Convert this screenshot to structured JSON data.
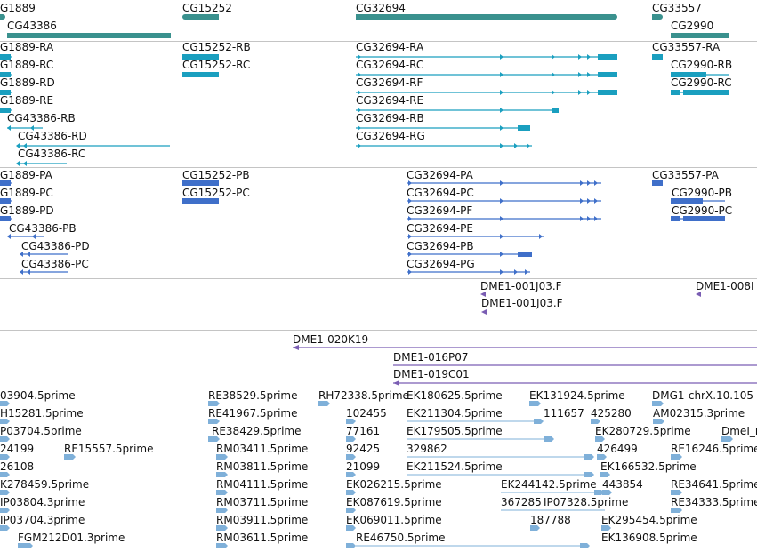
{
  "colors": {
    "gene": "#3a918e",
    "flybase_transcript": "#1a9fbf",
    "refseq_transcript": "#3f6fc9",
    "clone_end": "#7a5db3",
    "est": "#7fb0d9",
    "divider": "#c4c4c4"
  },
  "genes": [
    {
      "label": "G1889"
    },
    {
      "label": "CG43386"
    },
    {
      "label": "CG15252"
    },
    {
      "label": "CG32694"
    },
    {
      "label": "CG33557"
    },
    {
      "label": "CG2990"
    }
  ],
  "flybase_transcripts": [
    {
      "label": "G1889-RA"
    },
    {
      "label": "G1889-RC"
    },
    {
      "label": "G1889-RD"
    },
    {
      "label": "G1889-RE"
    },
    {
      "label": "CG43386-RB"
    },
    {
      "label": "CG43386-RD"
    },
    {
      "label": "CG43386-RC"
    },
    {
      "label": "CG15252-RB"
    },
    {
      "label": "CG15252-RC"
    },
    {
      "label": "CG32694-RA"
    },
    {
      "label": "CG32694-RC"
    },
    {
      "label": "CG32694-RF"
    },
    {
      "label": "CG32694-RE"
    },
    {
      "label": "CG32694-RB"
    },
    {
      "label": "CG32694-RG"
    },
    {
      "label": "CG33557-RA"
    },
    {
      "label": "CG2990-RB"
    },
    {
      "label": "CG2990-RC"
    }
  ],
  "refseq_transcripts": [
    {
      "label": "G1889-PA"
    },
    {
      "label": "G1889-PC"
    },
    {
      "label": "G1889-PD"
    },
    {
      "label": "CG43386-PB"
    },
    {
      "label": "CG43386-PD"
    },
    {
      "label": "CG43386-PC"
    },
    {
      "label": "CG15252-PB"
    },
    {
      "label": "CG15252-PC"
    },
    {
      "label": "CG32694-PA"
    },
    {
      "label": "CG32694-PC"
    },
    {
      "label": "CG32694-PF"
    },
    {
      "label": "CG32694-PE"
    },
    {
      "label": "CG32694-PB"
    },
    {
      "label": "CG32694-PG"
    },
    {
      "label": "CG33557-PA"
    },
    {
      "label": "CG2990-PB"
    },
    {
      "label": "CG2990-PC"
    }
  ],
  "clone_ends": [
    {
      "label": "DME1-001J03.F"
    },
    {
      "label": "DME1-001J03.F"
    },
    {
      "label": "DME1-008I"
    }
  ],
  "clone_spans": [
    {
      "label": "DME1-020K19"
    },
    {
      "label": "DME1-016P07"
    },
    {
      "label": "DME1-019C01"
    }
  ],
  "ests": [
    {
      "label": "03904.5prime"
    },
    {
      "label": "H15281.5prime"
    },
    {
      "label": "P03704.5prime"
    },
    {
      "label": "24199"
    },
    {
      "label": "RE15557.5prime"
    },
    {
      "label": "26108"
    },
    {
      "label": "K278459.5prime"
    },
    {
      "label": "IP03804.3prime"
    },
    {
      "label": "IP03704.3prime"
    },
    {
      "label": "FGM212D01.3prime"
    },
    {
      "label": "RE38529.5prime"
    },
    {
      "label": "RE41967.5prime"
    },
    {
      "label": "RE38429.5prime"
    },
    {
      "label": "RM03411.5prime"
    },
    {
      "label": "RM03811.5prime"
    },
    {
      "label": "RM04111.5prime"
    },
    {
      "label": "RM03711.5prime"
    },
    {
      "label": "RM03911.5prime"
    },
    {
      "label": "RM03611.5prime"
    },
    {
      "label": "RH72338.5prime"
    },
    {
      "label": "102455"
    },
    {
      "label": "77161"
    },
    {
      "label": "92425"
    },
    {
      "label": "21099"
    },
    {
      "label": "EK026215.5prime"
    },
    {
      "label": "EK087619.5prime"
    },
    {
      "label": "EK069011.5prime"
    },
    {
      "label": "RE46750.5prime"
    },
    {
      "label": "EK180625.5prime"
    },
    {
      "label": "EK211304.5prime"
    },
    {
      "label": "EK179505.5prime"
    },
    {
      "label": "329862"
    },
    {
      "label": "EK211524.5prime"
    },
    {
      "label": "EK244142.5prime"
    },
    {
      "label": "367285"
    },
    {
      "label": "IP07328.5prime"
    },
    {
      "label": "187788"
    },
    {
      "label": "EK131924.5prime"
    },
    {
      "label": "111657"
    },
    {
      "label": "425280"
    },
    {
      "label": "EK280729.5prime"
    },
    {
      "label": "426499"
    },
    {
      "label": "EK166532.5prime"
    },
    {
      "label": "443854"
    },
    {
      "label": "EK295454.5prime"
    },
    {
      "label": "EK136908.5prime"
    },
    {
      "label": "DMG1-chrX.10.105"
    },
    {
      "label": "AM02315.3prime"
    },
    {
      "label": "DmeI_r"
    },
    {
      "label": "RE16246.5prime"
    },
    {
      "label": "RE34641.5prime"
    },
    {
      "label": "RE34333.5prime"
    }
  ]
}
